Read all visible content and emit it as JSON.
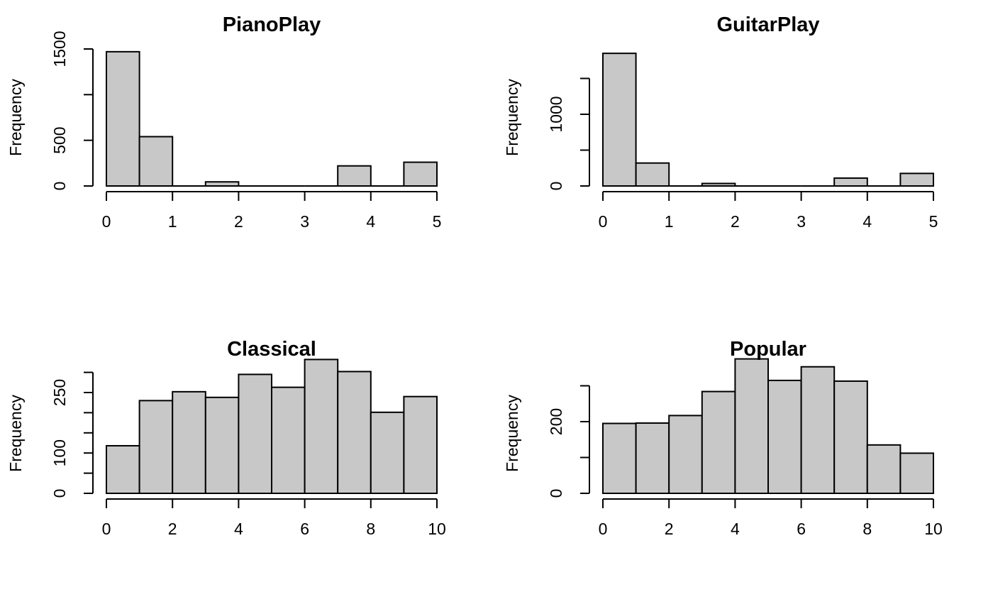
{
  "chart_data": [
    {
      "type": "bar",
      "title": "PianoPlay",
      "ylabel": "Frequency",
      "xlabel": "",
      "bin_edges": [
        0,
        0.5,
        1,
        1.5,
        2,
        2.5,
        3,
        3.5,
        4,
        4.5,
        5
      ],
      "values": [
        1470,
        540,
        0,
        45,
        0,
        0,
        0,
        220,
        0,
        260
      ],
      "xlim": [
        0,
        5
      ],
      "ylim": [
        0,
        1500
      ],
      "x_ticks": [
        "0",
        "1",
        "2",
        "3",
        "4",
        "5"
      ],
      "y_ticks": [
        0,
        500,
        1000,
        1500
      ],
      "y_tick_labels": [
        "0",
        "500",
        "",
        "1500"
      ],
      "grid": false,
      "bar_fill": "#c8c8c8"
    },
    {
      "type": "bar",
      "title": "GuitarPlay",
      "ylabel": "Frequency",
      "xlabel": "",
      "bin_edges": [
        0,
        0.5,
        1,
        1.5,
        2,
        2.5,
        3,
        3.5,
        4,
        4.5,
        5
      ],
      "values": [
        1850,
        320,
        0,
        35,
        0,
        0,
        0,
        110,
        0,
        175
      ],
      "xlim": [
        0,
        5
      ],
      "ylim": [
        0,
        1500
      ],
      "x_ticks": [
        "0",
        "1",
        "2",
        "3",
        "4",
        "5"
      ],
      "y_ticks": [
        0,
        500,
        1000,
        1500
      ],
      "y_tick_labels": [
        "0",
        "",
        "1000",
        ""
      ],
      "grid": false,
      "bar_fill": "#c8c8c8"
    },
    {
      "type": "bar",
      "title": "Classical",
      "ylabel": "Frequency",
      "xlabel": "",
      "bin_edges": [
        0,
        1,
        2,
        3,
        4,
        5,
        6,
        7,
        8,
        9,
        10
      ],
      "values": [
        118,
        230,
        252,
        238,
        295,
        263,
        332,
        302,
        201,
        240
      ],
      "xlim": [
        0,
        10
      ],
      "ylim": [
        0,
        300
      ],
      "x_ticks": [
        "0",
        "2",
        "4",
        "6",
        "8",
        "10"
      ],
      "y_ticks": [
        0,
        50,
        100,
        150,
        200,
        250,
        300
      ],
      "y_tick_labels": [
        "0",
        "",
        "100",
        "",
        "",
        "250",
        ""
      ],
      "grid": false,
      "bar_fill": "#c8c8c8"
    },
    {
      "type": "bar",
      "title": "Popular",
      "ylabel": "Frequency",
      "xlabel": "",
      "bin_edges": [
        0,
        1,
        2,
        3,
        4,
        5,
        6,
        7,
        8,
        9,
        10
      ],
      "values": [
        195,
        196,
        217,
        284,
        375,
        315,
        353,
        313,
        135,
        112
      ],
      "xlim": [
        0,
        10
      ],
      "ylim": [
        0,
        300
      ],
      "x_ticks": [
        "0",
        "2",
        "4",
        "6",
        "8",
        "10"
      ],
      "y_ticks": [
        0,
        100,
        200,
        300
      ],
      "y_tick_labels": [
        "0",
        "",
        "200",
        ""
      ],
      "grid": false,
      "bar_fill": "#c8c8c8"
    }
  ]
}
